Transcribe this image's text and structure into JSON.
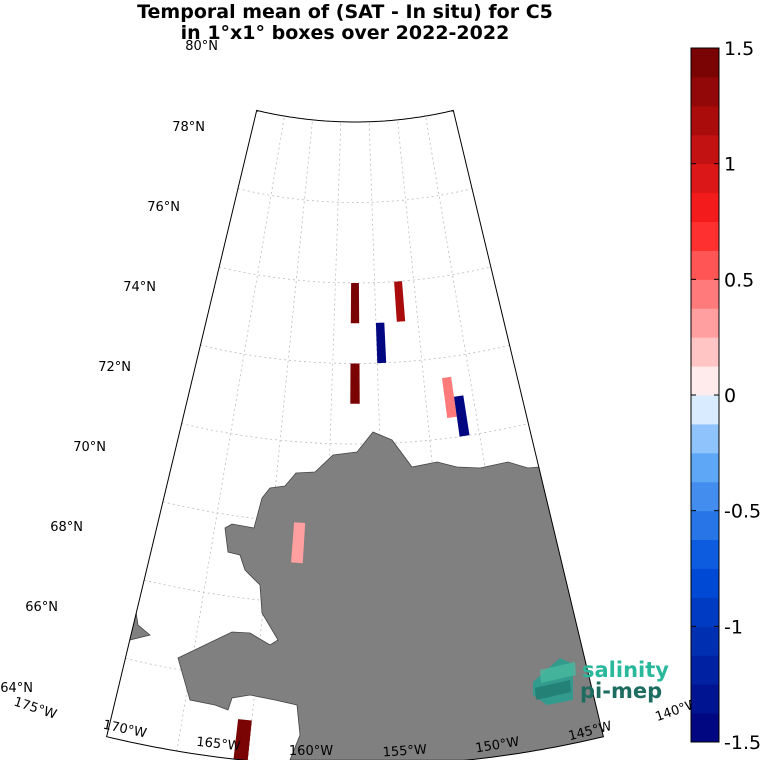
{
  "title": {
    "line1": "Temporal mean of (SAT - In situ) for C5",
    "line2": "in 1°x1° boxes over 2022-2022"
  },
  "map": {
    "projection": "polar conic sector",
    "lat_range": [
      64,
      80
    ],
    "lon_range": [
      -175,
      -140
    ],
    "lat_labels": [
      "80°N",
      "78°N",
      "76°N",
      "74°N",
      "72°N",
      "70°N",
      "68°N",
      "66°N",
      "64°N"
    ],
    "lon_labels": [
      "175°W",
      "170°W",
      "165°W",
      "160°W",
      "155°W",
      "150°W",
      "145°W",
      "140°W"
    ],
    "grid": true,
    "land_color": "#808080",
    "boxes": [
      {
        "lon": -157.5,
        "lat": 75.5,
        "value": 1.45
      },
      {
        "lon": -154.5,
        "lat": 74.5,
        "value": -1.5
      },
      {
        "lon": -152.0,
        "lat": 75.5,
        "value": 1.2
      },
      {
        "lon": -157.5,
        "lat": 73.5,
        "value": 1.45
      },
      {
        "lon": -147.5,
        "lat": 73.0,
        "value": 0.45
      },
      {
        "lon": -146.5,
        "lat": 72.5,
        "value": -1.5
      },
      {
        "lon": -162.5,
        "lat": 69.5,
        "value": 0.35
      },
      {
        "lon": -165.5,
        "lat": 64.5,
        "value": 1.45
      }
    ]
  },
  "colorbar": {
    "min": -1.5,
    "max": 1.5,
    "ticks": [
      "1.5",
      "1",
      "0.5",
      "0",
      "-0.5",
      "-1",
      "-1.5"
    ],
    "tick_values": [
      1.5,
      1,
      0.5,
      0,
      -0.5,
      -1,
      -1.5
    ]
  },
  "logo": {
    "line1": "salinity",
    "line2": "pi-mep"
  }
}
